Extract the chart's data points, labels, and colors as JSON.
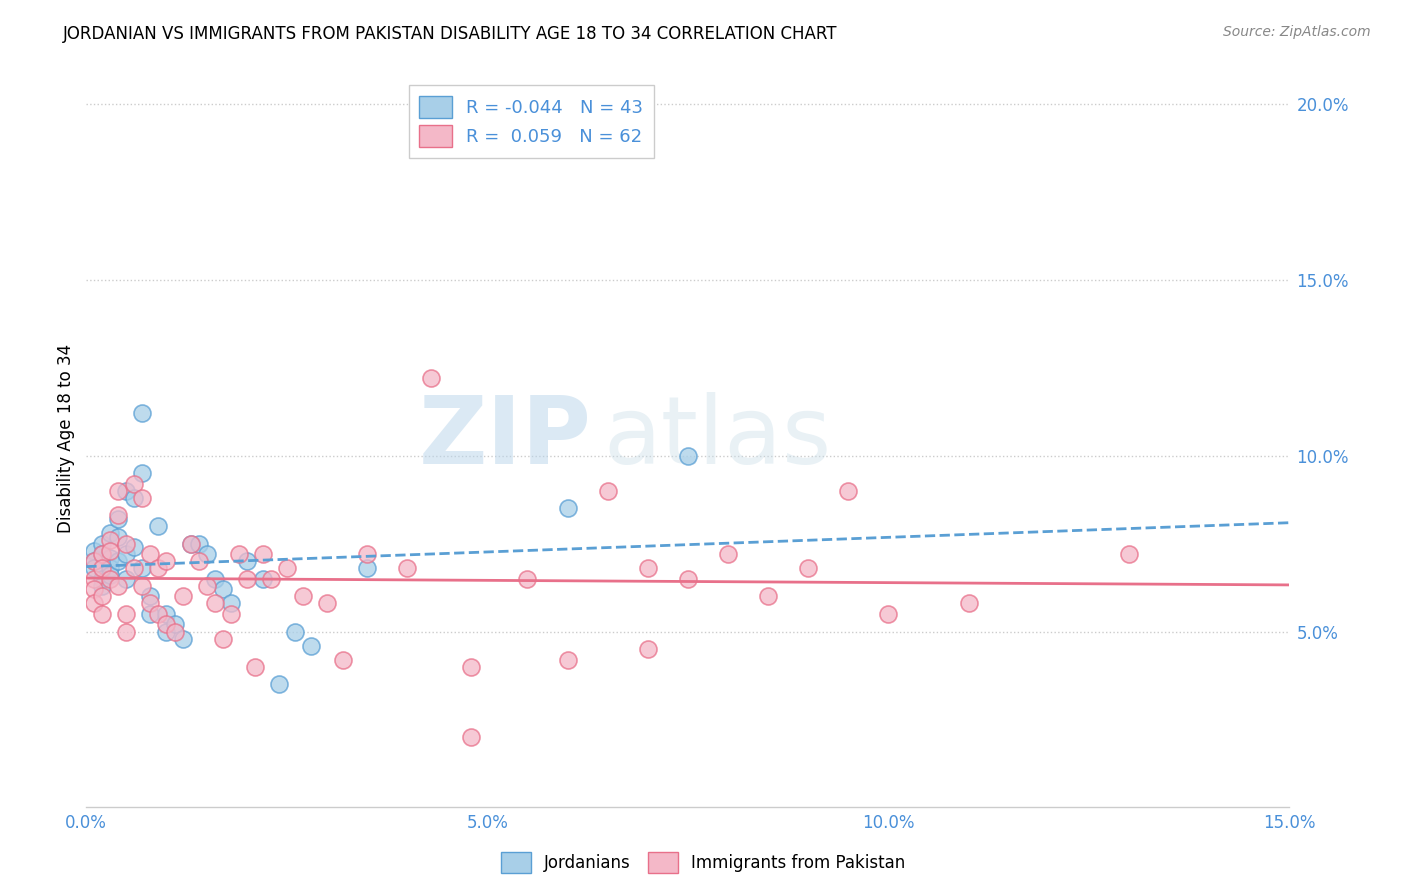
{
  "title": "JORDANIAN VS IMMIGRANTS FROM PAKISTAN DISABILITY AGE 18 TO 34 CORRELATION CHART",
  "source": "Source: ZipAtlas.com",
  "ylabel": "Disability Age 18 to 34",
  "xlim": [
    0.0,
    0.15
  ],
  "ylim": [
    0.0,
    0.21
  ],
  "xticks": [
    0.0,
    0.05,
    0.1,
    0.15
  ],
  "yticks": [
    0.05,
    0.1,
    0.15,
    0.2
  ],
  "xtick_labels": [
    "0.0%",
    "5.0%",
    "10.0%",
    "15.0%"
  ],
  "ytick_labels": [
    "5.0%",
    "10.0%",
    "15.0%",
    "20.0%"
  ],
  "watermark_zip": "ZIP",
  "watermark_atlas": "atlas",
  "blue_color": "#a8cfe8",
  "pink_color": "#f4b8c8",
  "blue_edge_color": "#5a9fd4",
  "pink_edge_color": "#e8708a",
  "blue_line_color": "#5a9fd4",
  "pink_line_color": "#e8708a",
  "R_blue": -0.044,
  "N_blue": 43,
  "R_pink": 0.059,
  "N_pink": 62,
  "blue_scatter_x": [
    0.001,
    0.001,
    0.001,
    0.002,
    0.002,
    0.002,
    0.002,
    0.003,
    0.003,
    0.003,
    0.003,
    0.004,
    0.004,
    0.004,
    0.005,
    0.005,
    0.005,
    0.006,
    0.006,
    0.007,
    0.007,
    0.007,
    0.008,
    0.008,
    0.009,
    0.01,
    0.01,
    0.011,
    0.012,
    0.013,
    0.014,
    0.015,
    0.016,
    0.017,
    0.018,
    0.02,
    0.022,
    0.024,
    0.026,
    0.028,
    0.035,
    0.06,
    0.075
  ],
  "blue_scatter_y": [
    0.073,
    0.07,
    0.068,
    0.075,
    0.072,
    0.065,
    0.063,
    0.078,
    0.071,
    0.068,
    0.066,
    0.082,
    0.077,
    0.07,
    0.09,
    0.072,
    0.065,
    0.088,
    0.074,
    0.095,
    0.112,
    0.068,
    0.06,
    0.055,
    0.08,
    0.055,
    0.05,
    0.052,
    0.048,
    0.075,
    0.075,
    0.072,
    0.065,
    0.062,
    0.058,
    0.07,
    0.065,
    0.035,
    0.05,
    0.046,
    0.068,
    0.085,
    0.1
  ],
  "pink_scatter_x": [
    0.001,
    0.001,
    0.001,
    0.001,
    0.002,
    0.002,
    0.002,
    0.002,
    0.003,
    0.003,
    0.003,
    0.004,
    0.004,
    0.004,
    0.005,
    0.005,
    0.005,
    0.006,
    0.006,
    0.007,
    0.007,
    0.008,
    0.008,
    0.009,
    0.009,
    0.01,
    0.01,
    0.011,
    0.012,
    0.013,
    0.014,
    0.015,
    0.016,
    0.017,
    0.018,
    0.019,
    0.02,
    0.021,
    0.022,
    0.023,
    0.025,
    0.027,
    0.03,
    0.032,
    0.035,
    0.04,
    0.043,
    0.048,
    0.055,
    0.06,
    0.065,
    0.07,
    0.075,
    0.08,
    0.085,
    0.09,
    0.095,
    0.1,
    0.11,
    0.13,
    0.07,
    0.048
  ],
  "pink_scatter_y": [
    0.065,
    0.07,
    0.062,
    0.058,
    0.072,
    0.068,
    0.06,
    0.055,
    0.076,
    0.073,
    0.065,
    0.09,
    0.083,
    0.063,
    0.075,
    0.055,
    0.05,
    0.092,
    0.068,
    0.088,
    0.063,
    0.072,
    0.058,
    0.068,
    0.055,
    0.07,
    0.052,
    0.05,
    0.06,
    0.075,
    0.07,
    0.063,
    0.058,
    0.048,
    0.055,
    0.072,
    0.065,
    0.04,
    0.072,
    0.065,
    0.068,
    0.06,
    0.058,
    0.042,
    0.072,
    0.068,
    0.122,
    0.04,
    0.065,
    0.042,
    0.09,
    0.068,
    0.065,
    0.072,
    0.06,
    0.068,
    0.09,
    0.055,
    0.058,
    0.072,
    0.045,
    0.02
  ]
}
